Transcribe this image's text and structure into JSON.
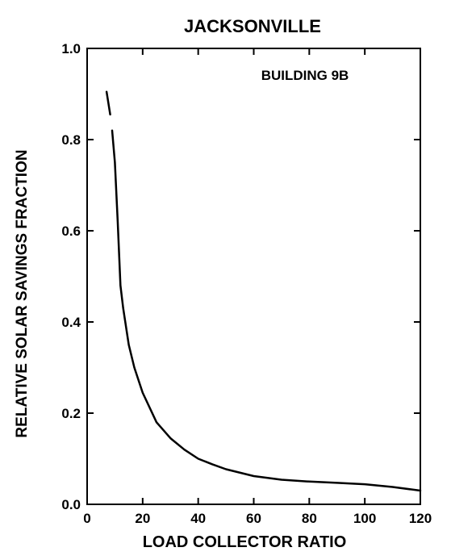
{
  "chart_data": {
    "type": "line",
    "title": "JACKSONVILLE",
    "xlabel": "LOAD COLLECTOR RATIO",
    "ylabel": "RELATIVE SOLAR SAVINGS FRACTION",
    "annotation": "BUILDING 9B",
    "xlim": [
      0,
      120
    ],
    "ylim": [
      0,
      1.0
    ],
    "x_ticks": [
      0,
      20,
      40,
      60,
      80,
      100,
      120
    ],
    "x_tick_labels": [
      "0",
      "20",
      "40",
      "60",
      "80",
      "100",
      "120"
    ],
    "y_ticks": [
      0,
      0.2,
      0.4,
      0.6,
      0.8,
      1.0
    ],
    "y_tick_labels": [
      "0.0",
      "0.2",
      "0.4",
      "0.6",
      "0.8",
      "1.0"
    ],
    "grid": false,
    "series": [
      {
        "extrapolated_x": [
          7,
          8.3
        ],
        "extrapolated_y": [
          0.905,
          0.855
        ],
        "x": [
          9,
          10,
          11,
          12,
          13,
          15,
          17,
          20,
          25,
          30,
          35,
          40,
          45,
          50,
          60,
          70,
          80,
          90,
          100,
          110,
          120
        ],
        "y": [
          0.82,
          0.75,
          0.62,
          0.48,
          0.43,
          0.35,
          0.3,
          0.245,
          0.18,
          0.145,
          0.12,
          0.1,
          0.088,
          0.077,
          0.062,
          0.054,
          0.05,
          0.047,
          0.044,
          0.038,
          0.03
        ]
      }
    ]
  }
}
